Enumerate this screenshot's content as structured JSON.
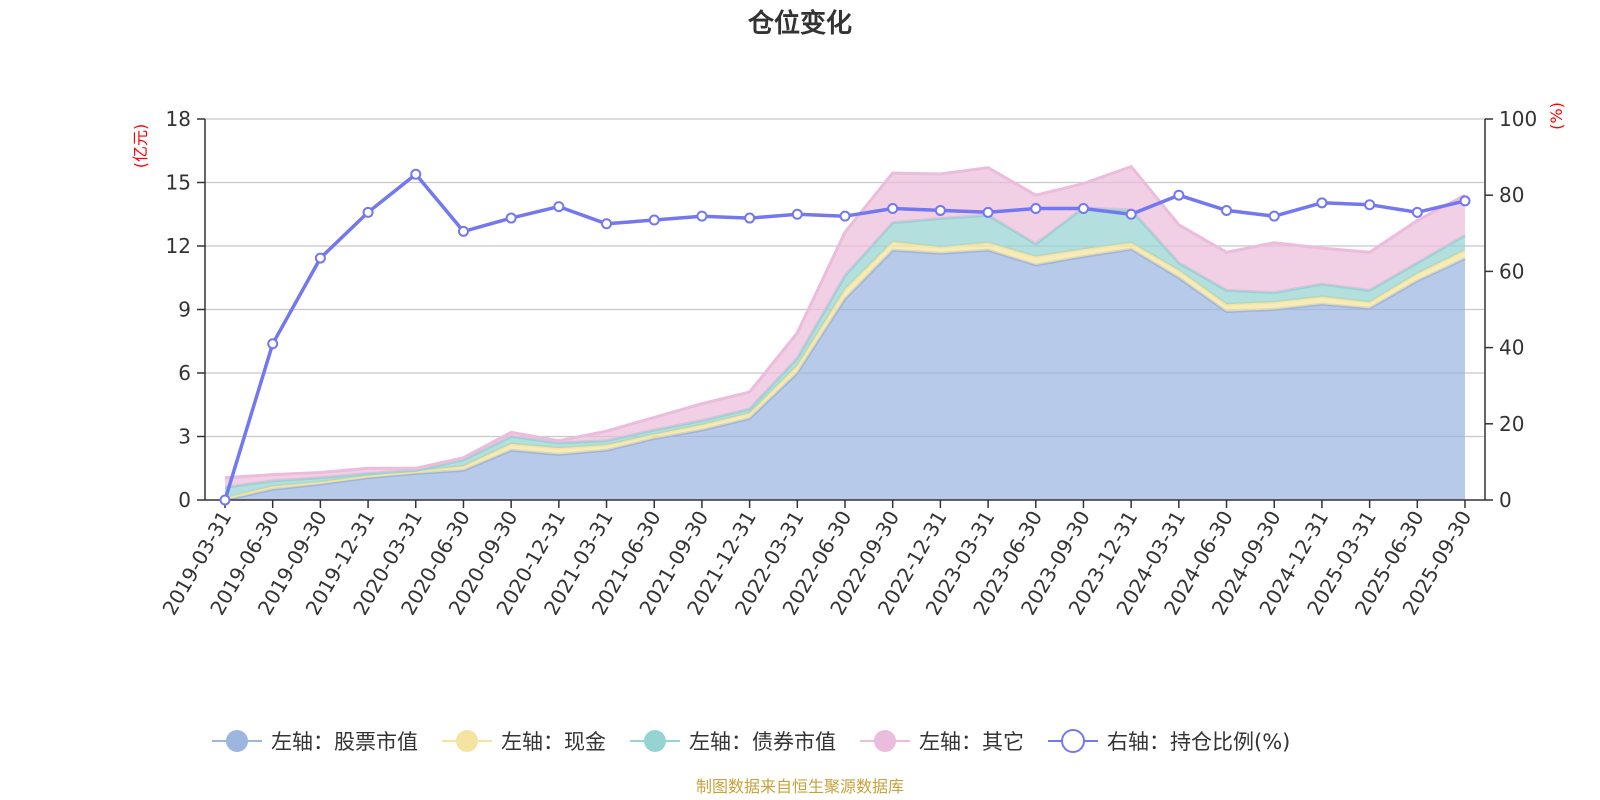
{
  "chart_data": {
    "type": "area",
    "title": "仓位变化",
    "left_unit": "(亿元)",
    "right_unit": "(%)",
    "source_text": "制图数据来自恒生聚源数据库",
    "x": [
      "2019-03-31",
      "2019-06-30",
      "2019-09-30",
      "2019-12-31",
      "2020-03-31",
      "2020-06-30",
      "2020-09-30",
      "2020-12-31",
      "2021-03-31",
      "2021-06-30",
      "2021-09-30",
      "2021-12-31",
      "2022-03-31",
      "2022-06-30",
      "2022-09-30",
      "2022-12-31",
      "2023-03-31",
      "2023-06-30",
      "2023-09-30",
      "2023-12-31",
      "2024-03-31",
      "2024-06-30",
      "2024-09-30",
      "2024-12-31",
      "2025-03-31",
      "2025-06-30",
      "2025-09-30"
    ],
    "left_axis": {
      "min": 0,
      "max": 18,
      "ticks": [
        "0",
        "3",
        "6",
        "9",
        "12",
        "15",
        "18"
      ]
    },
    "right_axis": {
      "min": 0,
      "max": 100,
      "ticks": [
        "0",
        "20",
        "40",
        "60",
        "80",
        "100"
      ]
    },
    "stacked_series": [
      {
        "name": "左轴：股票市值",
        "color": "#9db6e0",
        "values": [
          0,
          0.5,
          0.75,
          1.05,
          1.25,
          1.4,
          2.35,
          2.15,
          2.35,
          2.9,
          3.3,
          3.85,
          6.0,
          9.5,
          11.8,
          11.65,
          11.8,
          11.1,
          11.5,
          11.85,
          10.5,
          8.9,
          9.0,
          9.25,
          9.05,
          10.35,
          11.4
        ]
      },
      {
        "name": "左轴：现金",
        "color": "#f5e3a0",
        "values": [
          0.1,
          0.15,
          0.1,
          0.1,
          0.1,
          0.2,
          0.3,
          0.3,
          0.25,
          0.2,
          0.25,
          0.25,
          0.35,
          0.45,
          0.4,
          0.3,
          0.35,
          0.4,
          0.35,
          0.3,
          0.35,
          0.35,
          0.35,
          0.35,
          0.3,
          0.35,
          0.4
        ]
      },
      {
        "name": "左轴：债券市值",
        "color": "#96d3d3",
        "values": [
          0.5,
          0.25,
          0.2,
          0.1,
          0.05,
          0.3,
          0.35,
          0.25,
          0.2,
          0.2,
          0.2,
          0.2,
          0.35,
          0.65,
          0.9,
          1.35,
          1.3,
          0.6,
          1.95,
          1.55,
          0.35,
          0.65,
          0.45,
          0.6,
          0.55,
          0.5,
          0.7
        ]
      },
      {
        "name": "左轴：其它",
        "color": "#ebbcdb",
        "values": [
          0.45,
          0.3,
          0.25,
          0.25,
          0.1,
          0.1,
          0.2,
          0.1,
          0.45,
          0.6,
          0.8,
          0.8,
          1.2,
          2.05,
          2.35,
          2.1,
          2.25,
          2.3,
          1.15,
          2.05,
          1.8,
          1.8,
          2.35,
          1.7,
          1.8,
          2.0,
          1.9
        ]
      }
    ],
    "line_series": {
      "name": "右轴：持仓比例(%)",
      "color": "#7378f0",
      "values": [
        0,
        41,
        63.5,
        75.5,
        85.5,
        70.5,
        74,
        77,
        72.5,
        73.5,
        74.5,
        74,
        75,
        74.5,
        76.5,
        76,
        75.5,
        76.5,
        76.5,
        75,
        80,
        76,
        74.5,
        78,
        77.5,
        75.5,
        78.5
      ]
    },
    "legend": [
      {
        "label": "左轴：股票市值",
        "color": "#9db6e0",
        "kind": "filled"
      },
      {
        "label": "左轴：现金",
        "color": "#f5e3a0",
        "kind": "filled"
      },
      {
        "label": "左轴：债券市值",
        "color": "#96d3d3",
        "kind": "filled"
      },
      {
        "label": "左轴：其它",
        "color": "#ebbcdb",
        "kind": "filled"
      },
      {
        "label": "右轴：持仓比例(%)",
        "color": "#7378f0",
        "kind": "hollow"
      }
    ]
  }
}
